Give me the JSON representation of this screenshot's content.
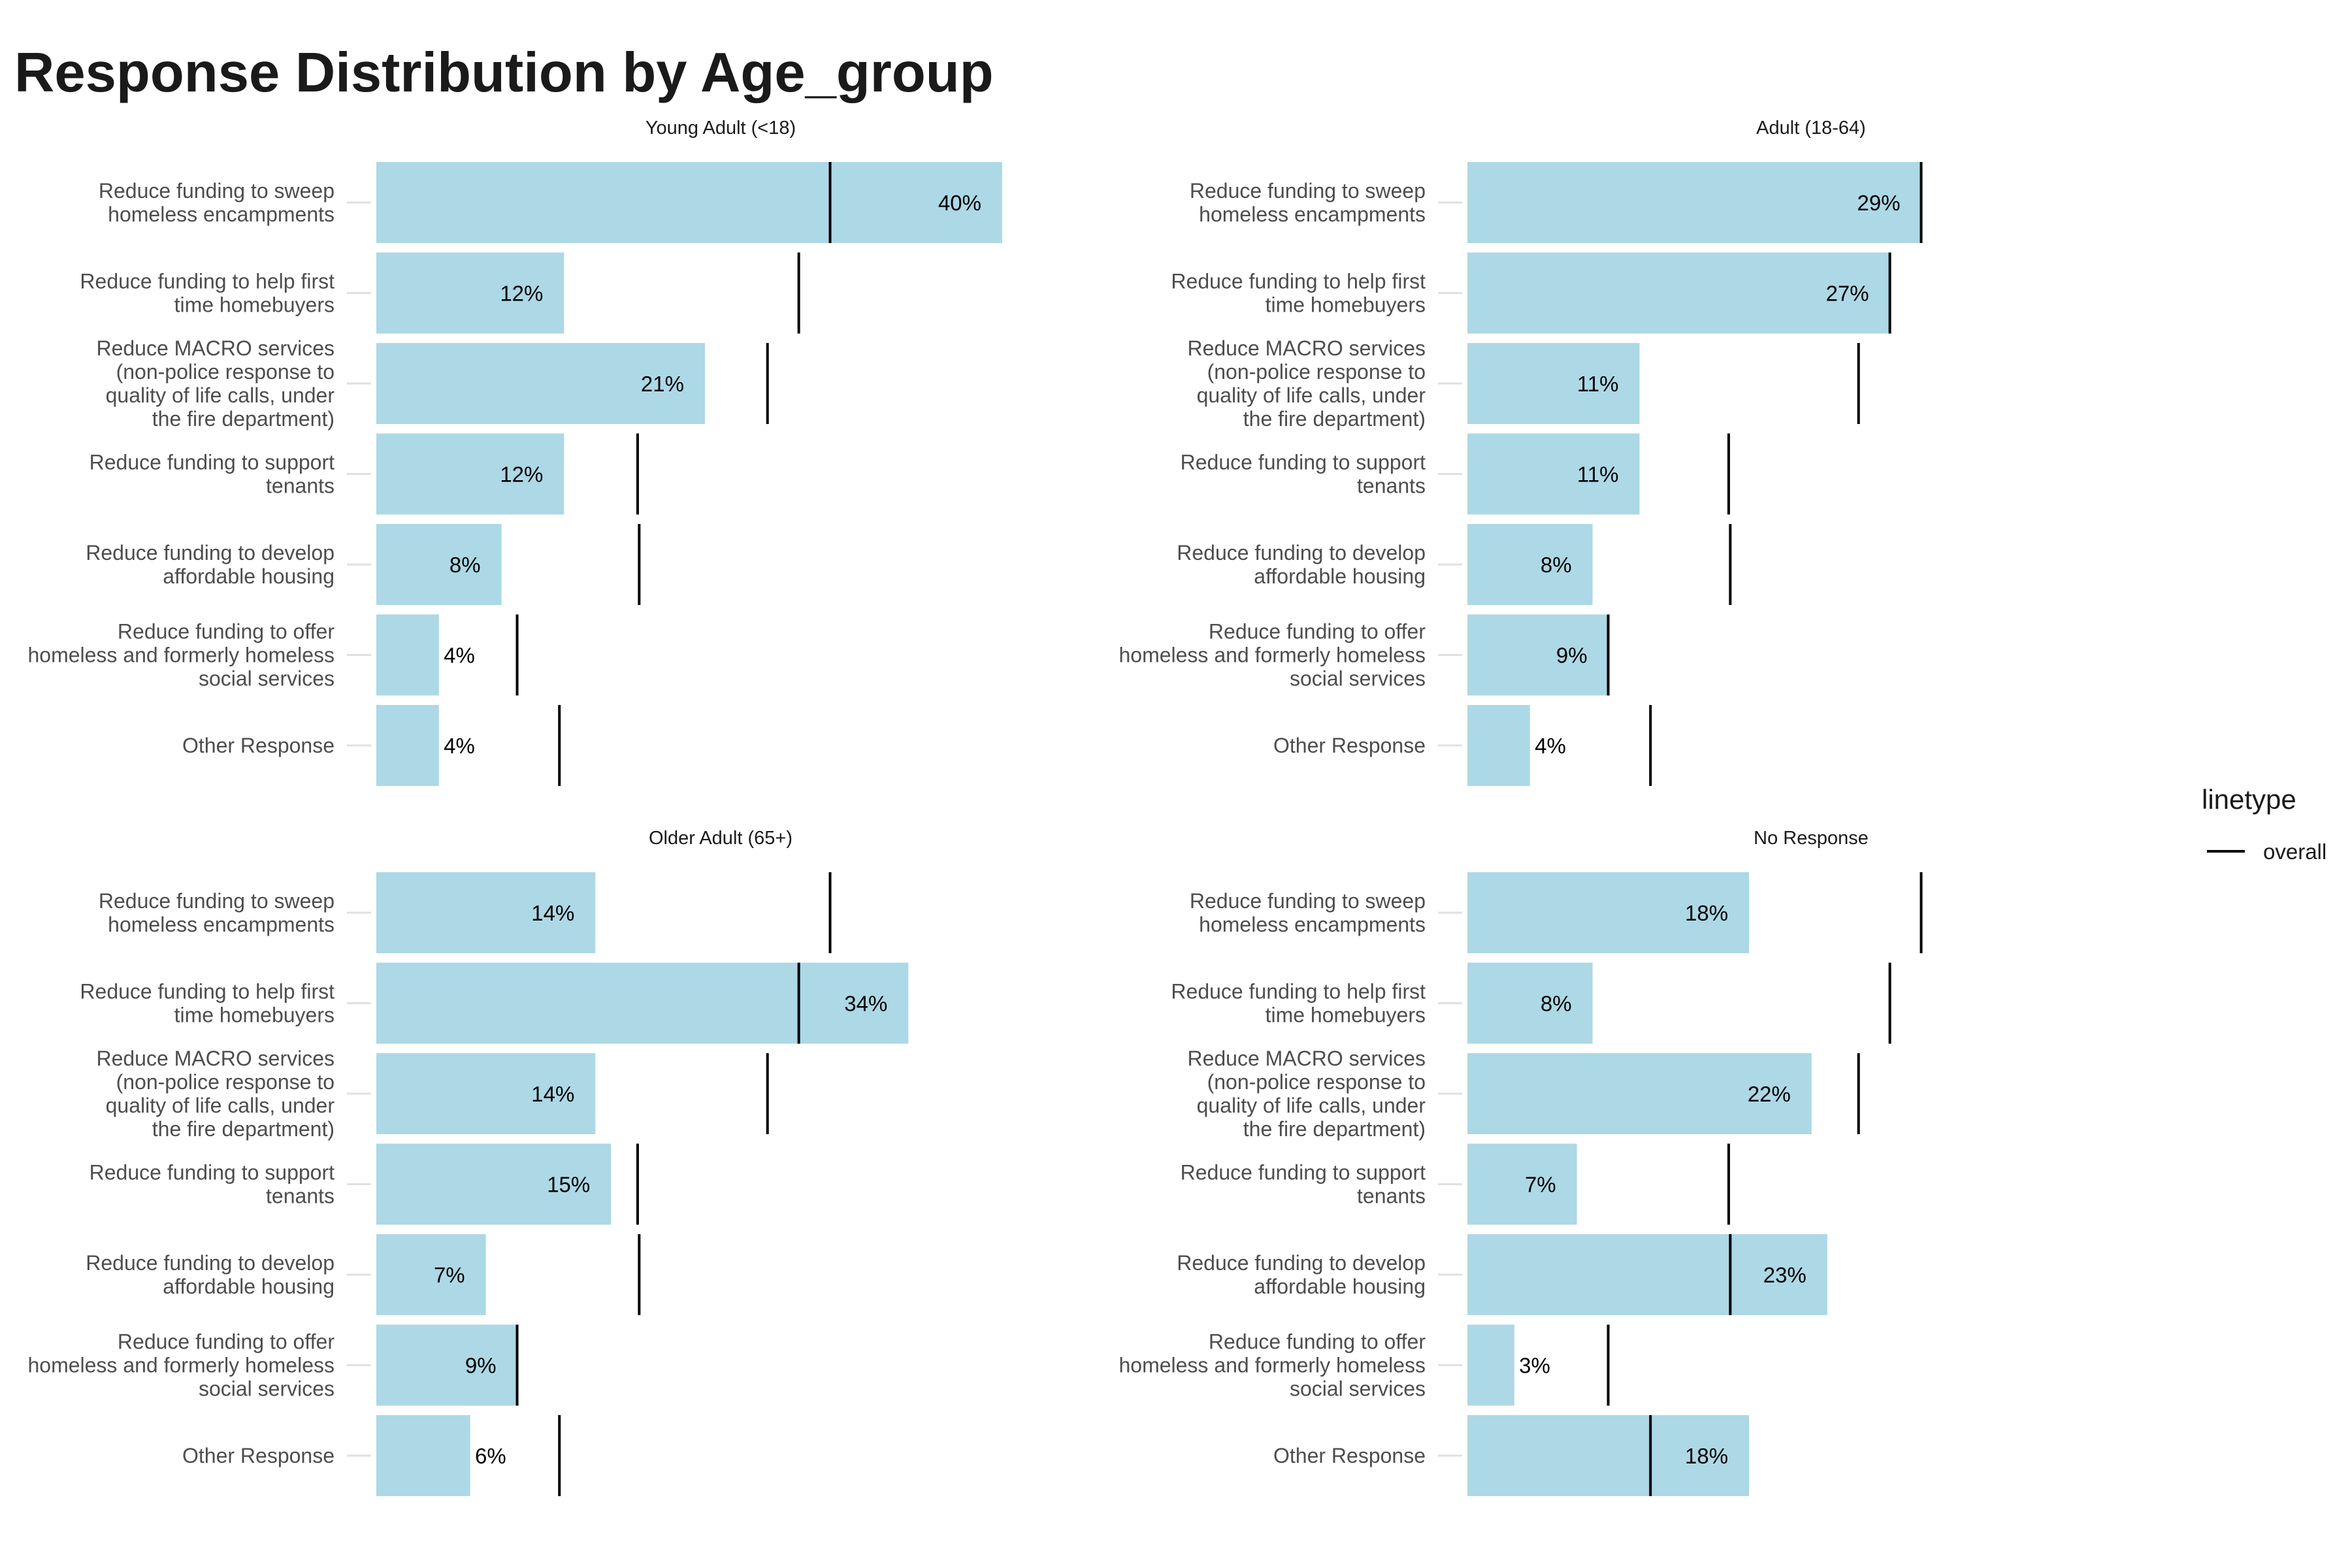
{
  "chart_data": {
    "type": "bar",
    "title": "Response Distribution by Age_group",
    "orientation": "horizontal",
    "categories": [
      "Reduce funding to sweep\nhomeless encampments",
      "Reduce funding to help first\ntime homebuyers",
      "Reduce MACRO services\n(non-police response to\nquality of life calls, under\nthe fire department)",
      "Reduce funding to support\ntenants",
      "Reduce funding to develop\naffordable housing",
      "Reduce funding to offer\nhomeless and formerly homeless\nsocial services",
      "Other Response"
    ],
    "overall": [
      0.29,
      0.27,
      0.25,
      0.167,
      0.168,
      0.09,
      0.117
    ],
    "facets": [
      {
        "name": "Young Adult (<18)",
        "values": [
          0.4,
          0.12,
          0.21,
          0.12,
          0.08,
          0.04,
          0.04
        ],
        "labels": [
          "40%",
          "12%",
          "21%",
          "12%",
          "8%",
          "4%",
          "4%"
        ]
      },
      {
        "name": "Adult (18-64)",
        "values": [
          0.29,
          0.27,
          0.11,
          0.11,
          0.08,
          0.09,
          0.04
        ],
        "labels": [
          "29%",
          "27%",
          "11%",
          "11%",
          "8%",
          "9%",
          "4%"
        ]
      },
      {
        "name": "Older Adult (65+)",
        "values": [
          0.14,
          0.34,
          0.14,
          0.15,
          0.07,
          0.09,
          0.06
        ],
        "labels": [
          "14%",
          "34%",
          "14%",
          "15%",
          "7%",
          "9%",
          "6%"
        ]
      },
      {
        "name": "No Response",
        "values": [
          0.18,
          0.08,
          0.22,
          0.07,
          0.23,
          0.03,
          0.18
        ],
        "labels": [
          "18%",
          "8%",
          "22%",
          "7%",
          "23%",
          "3%",
          "18%"
        ]
      }
    ],
    "xlim": [
      0,
      0.4
    ],
    "legend": {
      "title": "linetype",
      "entries": [
        "overall"
      ],
      "placement": "right"
    },
    "grid": false,
    "colors": {
      "bar": "#add8e6",
      "overall_line": "#000000"
    }
  }
}
